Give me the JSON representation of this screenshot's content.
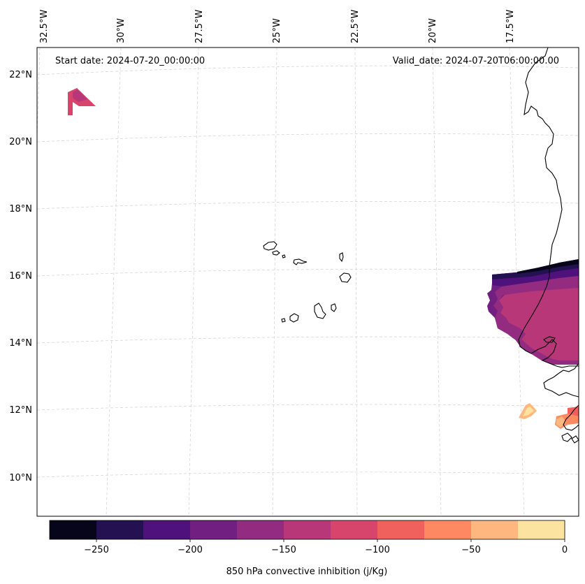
{
  "header": {
    "start_date": "Start date: 2024-07-20_00:00:00",
    "valid_date": "Valid_date: 2024-07-20T06:00:00.00"
  },
  "map": {
    "lon_labels": [
      "32.5°W",
      "30°W",
      "27.5°W",
      "25°W",
      "22.5°W",
      "20°W",
      "17.5°W"
    ],
    "lat_labels": [
      "22°N",
      "20°N",
      "18°N",
      "16°N",
      "14°N",
      "12°N",
      "10°N"
    ],
    "gridlines": true
  },
  "colorbar": {
    "label": "850 hPa convective inhibition (j/Kg)",
    "tick_labels": [
      "−250",
      "−200",
      "−150",
      "−100",
      "−50",
      "0"
    ],
    "levels": [
      -275,
      -250,
      -225,
      -200,
      -175,
      -150,
      -125,
      -100,
      -75,
      -50,
      -25,
      0
    ],
    "colors": [
      "#06051a",
      "#231151",
      "#4f117b",
      "#711f81",
      "#932b80",
      "#b73779",
      "#d8456c",
      "#f0605d",
      "#fc8961",
      "#feb77e",
      "#fde3a0"
    ]
  },
  "colors": {
    "coastline": "#000000",
    "gridline": "#d0d0d0",
    "frame": "#000000"
  }
}
